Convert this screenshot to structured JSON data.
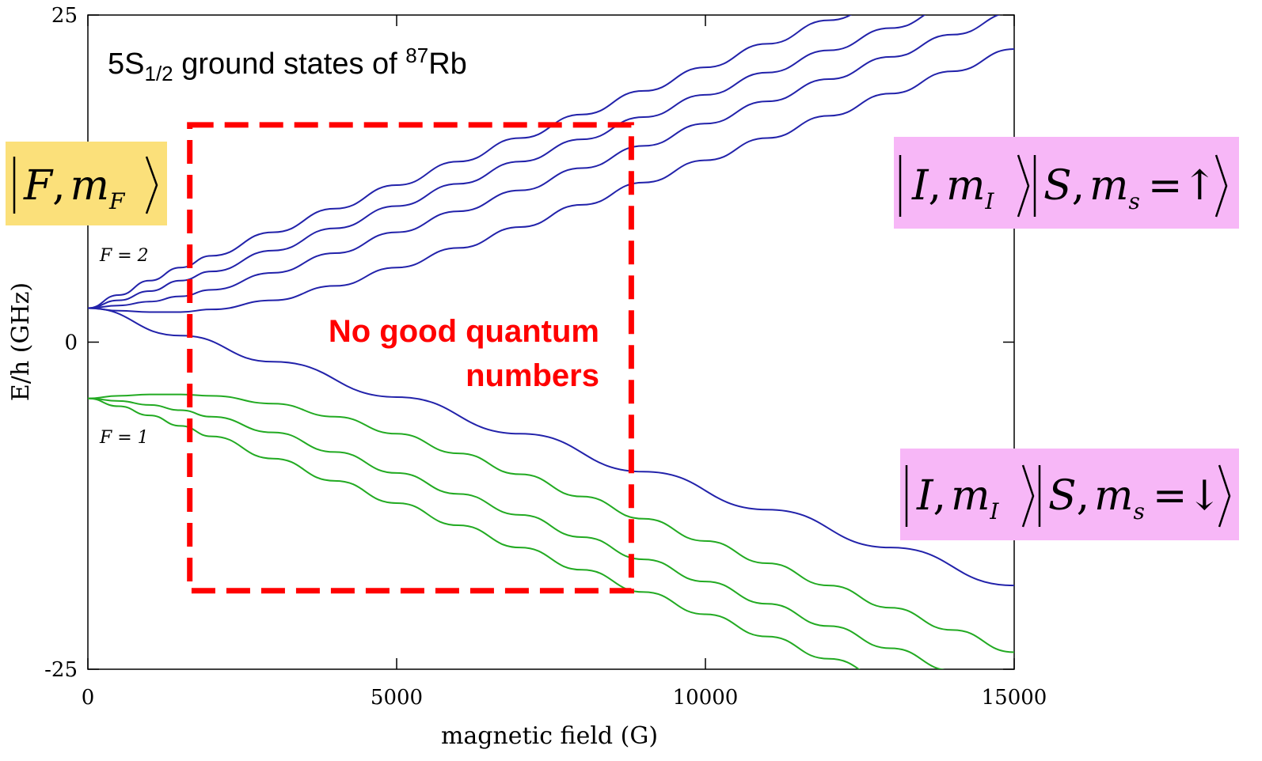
{
  "colors": {
    "f2": "#2222aa",
    "f1": "#22aa22",
    "annotation": "#ff0000",
    "yellow_box": "#fbe07a",
    "pink_box": "#f7b7f7"
  },
  "chart_data": {
    "type": "line",
    "title_main": "5S",
    "title_sub": "1/2",
    "title_mid": " ground states of ",
    "title_sup": "87",
    "title_end": "Rb",
    "xlabel": "magnetic field (G)",
    "ylabel": "E/h (GHz)",
    "xlim": [
      0,
      15000
    ],
    "ylim": [
      -25,
      25
    ],
    "xticks": [
      "0",
      "5000",
      "10000",
      "15000"
    ],
    "yticks": [
      "25",
      "0",
      "-25"
    ],
    "series": [
      {
        "group": "F2",
        "x": [
          0,
          500,
          1000,
          1500,
          2000,
          3000,
          4000,
          5000,
          6000,
          7000,
          8000,
          9000,
          10000,
          11000,
          12000,
          13000,
          14000,
          15000
        ],
        "y": [
          2.6,
          3.6,
          4.7,
          5.7,
          6.6,
          8.4,
          10.2,
          12.0,
          13.8,
          15.6,
          17.4,
          19.2,
          21.0,
          22.8,
          24.6,
          26.4,
          28.2,
          30.0
        ]
      },
      {
        "group": "F2",
        "x": [
          0,
          500,
          1000,
          1500,
          2000,
          3000,
          4000,
          5000,
          6000,
          7000,
          8000,
          9000,
          10000,
          11000,
          12000,
          13000,
          14000,
          15000
        ],
        "y": [
          2.6,
          3.2,
          3.9,
          4.7,
          5.4,
          7.0,
          8.7,
          10.4,
          12.1,
          13.8,
          15.5,
          17.2,
          18.9,
          20.6,
          22.3,
          24.0,
          25.7,
          27.4
        ]
      },
      {
        "group": "F2",
        "x": [
          0,
          500,
          1000,
          1500,
          2000,
          3000,
          4000,
          5000,
          6000,
          7000,
          8000,
          9000,
          10000,
          11000,
          12000,
          13000,
          14000,
          15000
        ],
        "y": [
          2.6,
          2.8,
          3.1,
          3.5,
          4.0,
          5.3,
          6.8,
          8.4,
          10.0,
          11.6,
          13.3,
          15.0,
          16.7,
          18.4,
          20.1,
          21.8,
          23.5,
          25.2
        ]
      },
      {
        "group": "F2",
        "x": [
          0,
          500,
          1000,
          1500,
          2000,
          3000,
          4000,
          5000,
          6000,
          7000,
          8000,
          9000,
          10000,
          11000,
          12000,
          13000,
          14000,
          15000
        ],
        "y": [
          2.6,
          2.4,
          2.3,
          2.3,
          2.5,
          3.2,
          4.3,
          5.7,
          7.2,
          8.8,
          10.5,
          12.2,
          13.9,
          15.6,
          17.3,
          19.0,
          20.7,
          22.4
        ]
      },
      {
        "group": "F2",
        "x": [
          0,
          1500,
          3000,
          5000,
          7000,
          9000,
          11000,
          13000,
          15000
        ],
        "y": [
          2.6,
          0.5,
          -1.5,
          -4.2,
          -7.0,
          -9.9,
          -12.8,
          -15.7,
          -18.6
        ]
      },
      {
        "group": "F1",
        "x": [
          0,
          500,
          1000,
          1500,
          2000,
          3000,
          4000,
          5000,
          6000,
          7000,
          8000,
          9000,
          10000,
          11000,
          12000,
          13000,
          14000,
          15000
        ],
        "y": [
          -4.3,
          -4.1,
          -4.0,
          -4.0,
          -4.1,
          -4.7,
          -5.7,
          -7.0,
          -8.5,
          -10.1,
          -11.8,
          -13.5,
          -15.2,
          -16.9,
          -18.6,
          -20.3,
          -22.0,
          -23.7
        ]
      },
      {
        "group": "F1",
        "x": [
          0,
          500,
          1000,
          1500,
          2000,
          3000,
          4000,
          5000,
          6000,
          7000,
          8000,
          9000,
          10000,
          11000,
          12000,
          13000,
          14000,
          15000
        ],
        "y": [
          -4.3,
          -4.5,
          -4.8,
          -5.2,
          -5.7,
          -6.9,
          -8.4,
          -10.0,
          -11.6,
          -13.2,
          -14.9,
          -16.6,
          -18.3,
          -20.0,
          -21.7,
          -23.4,
          -25.1,
          -26.8
        ]
      },
      {
        "group": "F1",
        "x": [
          0,
          500,
          1000,
          1500,
          2000,
          3000,
          4000,
          5000,
          6000,
          7000,
          8000,
          9000,
          10000,
          11000,
          12000,
          13000,
          14000,
          15000
        ],
        "y": [
          -4.3,
          -4.9,
          -5.6,
          -6.4,
          -7.2,
          -8.9,
          -10.6,
          -12.3,
          -14.0,
          -15.7,
          -17.4,
          -19.1,
          -20.8,
          -22.5,
          -24.2,
          -25.9,
          -27.6,
          -29.3
        ]
      }
    ],
    "annotations": {
      "f2_label": "F = 2",
      "f1_label": "F = 1",
      "no_good_line1": "No good quantum",
      "no_good_line2": "numbers",
      "box_x": [
        1650,
        8800
      ],
      "box_y": [
        16.6,
        -19.0
      ]
    }
  },
  "labels": {
    "ket_F": {
      "F": "F",
      "comma": ",",
      "m": "m",
      "sub": "F"
    },
    "ket_up": {
      "I": "I",
      "mI": "m",
      "mI_sub": "I",
      "S": "S",
      "ms": "m",
      "ms_sub": "s",
      "eq": "=",
      "arrow": "↑"
    },
    "ket_down": {
      "I": "I",
      "mI": "m",
      "mI_sub": "I",
      "S": "S",
      "ms": "m",
      "ms_sub": "s",
      "eq": "=",
      "arrow": "↓"
    }
  }
}
